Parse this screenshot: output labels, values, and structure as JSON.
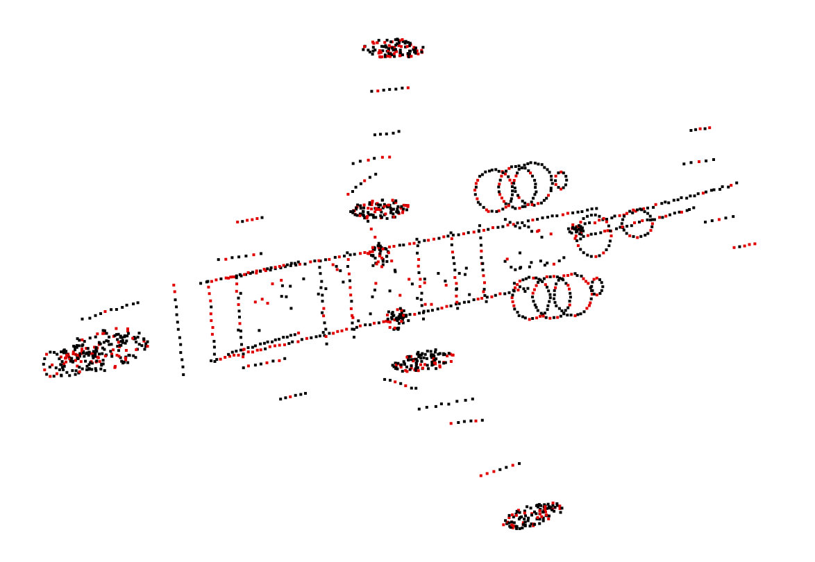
{
  "scene": {
    "subject": "aircraft-point-cloud",
    "background_color": "#ffffff",
    "point_colors": {
      "primary": "#000000",
      "secondary": "#e00000"
    },
    "secondary_point_share": 0.32,
    "parts": [
      "nose",
      "fuselage",
      "upper-left-wing",
      "lower-right-wing",
      "upper-engine-nacelle",
      "lower-engine-nacelle",
      "tail-cone",
      "upper-horizontal-stabilizer",
      "lower-horizontal-stabilizer",
      "upper-left-wingtip-pod",
      "upper-left-inner-pod",
      "lower-right-inner-pod",
      "lower-right-wingtip-pod",
      "fuselage-upper-pod",
      "fuselage-lower-pod"
    ]
  }
}
